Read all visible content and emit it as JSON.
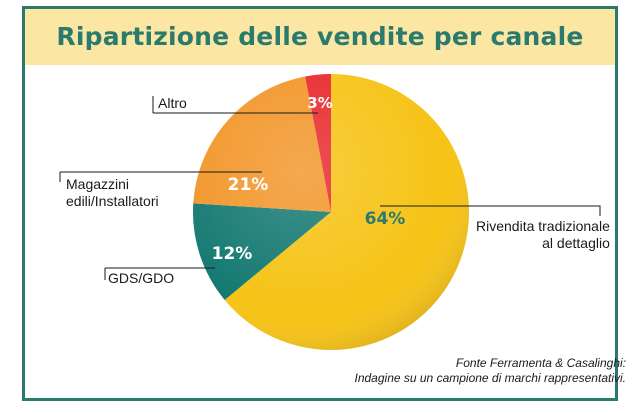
{
  "chart_data": {
    "type": "pie",
    "title": "Ripartizione delle vendite per canale",
    "slices": [
      {
        "label": "Rivendita tradizionale al dettaglio",
        "label_lines": [
          "Rivendita tradizionale",
          "al dettaglio"
        ],
        "value": 64,
        "display": "64%",
        "color": "#f6c316",
        "text_color": "#2a7a6e"
      },
      {
        "label": "GDS/GDO",
        "label_lines": [
          "GDS/GDO"
        ],
        "value": 12,
        "display": "12%",
        "color": "#157a72",
        "text_color": "#ffffff"
      },
      {
        "label": "Magazzini edili/Installatori",
        "label_lines": [
          "Magazzini",
          "edili/Installatori"
        ],
        "value": 21,
        "display": "21%",
        "color": "#f2962a",
        "text_color": "#ffffff"
      },
      {
        "label": "Altro",
        "label_lines": [
          "Altro"
        ],
        "value": 3,
        "display": "3%",
        "color": "#e82a2e",
        "text_color": "#ffffff"
      }
    ],
    "source_lines": [
      "Fonte Ferramenta & Casalinghi:",
      "Indagine su un campione di marchi rappresentativi."
    ]
  }
}
